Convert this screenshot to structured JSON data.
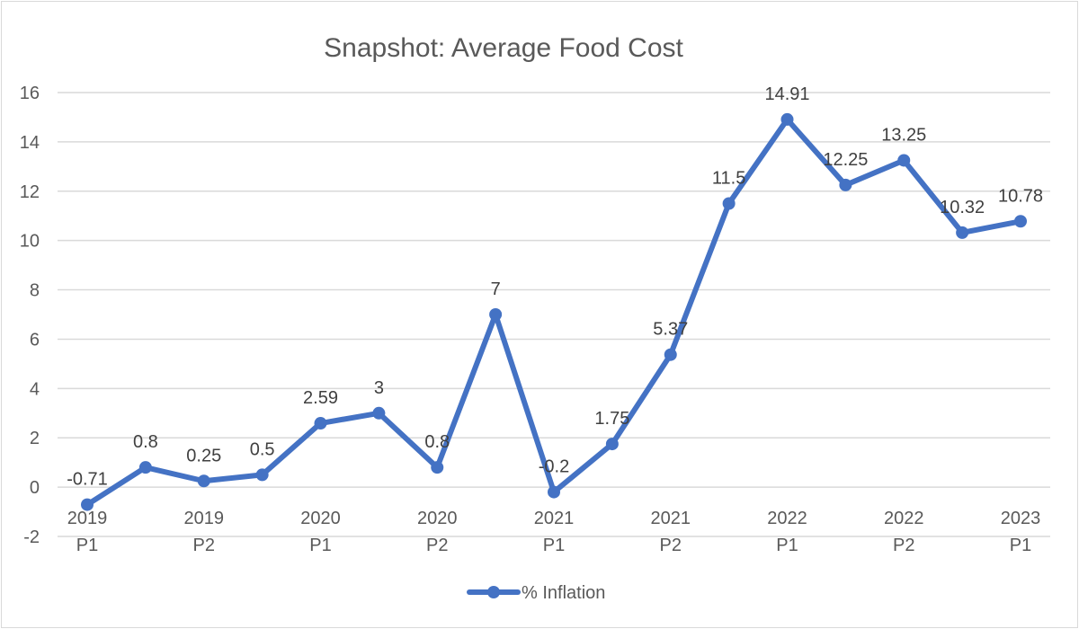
{
  "chart_data": {
    "type": "line",
    "title": "Snapshot:  Average Food Cost",
    "xlabel": "",
    "ylabel": "",
    "ylim": [
      -2,
      16
    ],
    "yticks": [
      -2,
      0,
      2,
      4,
      6,
      8,
      10,
      12,
      14,
      16
    ],
    "grid": true,
    "legend": "bottom",
    "x": [
      "2019 P1",
      "",
      "2019 P2",
      "",
      "2020 P1",
      "",
      "2020 P2",
      "",
      "2021 P1",
      "",
      "2021 P2",
      "",
      "2022 P1",
      "",
      "2022 P2",
      "",
      "2023 P1"
    ],
    "xtick_labels": [
      {
        "index": 0,
        "line1": "2019",
        "line2": "P1"
      },
      {
        "index": 2,
        "line1": "2019",
        "line2": "P2"
      },
      {
        "index": 4,
        "line1": "2020",
        "line2": "P1"
      },
      {
        "index": 6,
        "line1": "2020",
        "line2": "P2"
      },
      {
        "index": 8,
        "line1": "2021",
        "line2": "P1"
      },
      {
        "index": 10,
        "line1": "2021",
        "line2": "P2"
      },
      {
        "index": 12,
        "line1": "2022",
        "line2": "P1"
      },
      {
        "index": 14,
        "line1": "2022",
        "line2": "P2"
      },
      {
        "index": 16,
        "line1": "2023",
        "line2": "P1"
      }
    ],
    "series": [
      {
        "name": "% Inflation",
        "color": "#4472c4",
        "values": [
          -0.71,
          0.8,
          0.25,
          0.5,
          2.59,
          3,
          0.8,
          7,
          -0.2,
          1.75,
          5.37,
          11.5,
          14.91,
          12.25,
          13.25,
          10.32,
          10.78
        ],
        "labels": [
          "-0.71",
          "0.8",
          "0.25",
          "0.5",
          "2.59",
          "3",
          "0.8",
          "7",
          "-0.2",
          "1.75",
          "5.37",
          "11.5",
          "14.91",
          "12.25",
          "13.25",
          "10.32",
          "10.78"
        ]
      }
    ]
  }
}
